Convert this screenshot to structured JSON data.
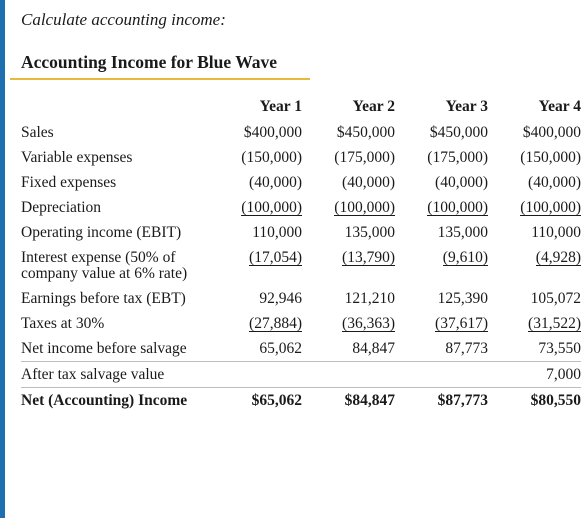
{
  "intro": "Calculate accounting income:",
  "heading": "Accounting Income for Blue Wave",
  "columns": [
    "Year 1",
    "Year 2",
    "Year 3",
    "Year 4"
  ],
  "rows": [
    {
      "label": "Sales",
      "values": [
        "$400,000",
        "$450,000",
        "$450,000",
        "$400,000"
      ],
      "underline": false
    },
    {
      "label": "Variable expenses",
      "values": [
        "(150,000)",
        "(175,000)",
        "(175,000)",
        "(150,000)"
      ],
      "underline": false
    },
    {
      "label": "Fixed expenses",
      "values": [
        "(40,000)",
        "(40,000)",
        "(40,000)",
        "(40,000)"
      ],
      "underline": false
    },
    {
      "label": "Depreciation",
      "values": [
        "(100,000)",
        "(100,000)",
        "(100,000)",
        "(100,000)"
      ],
      "underline": true
    },
    {
      "label": "Operating income (EBIT)",
      "values": [
        "110,000",
        "135,000",
        "135,000",
        "110,000"
      ],
      "underline": false
    },
    {
      "label": "Interest expense (50% of company value at 6% rate)",
      "values": [
        "(17,054)",
        "(13,790)",
        "(9,610)",
        "(4,928)"
      ],
      "underline": true
    },
    {
      "label": "Earnings before tax (EBT)",
      "values": [
        "92,946",
        "121,210",
        "125,390",
        "105,072"
      ],
      "underline": false
    },
    {
      "label": "Taxes at 30%",
      "values": [
        "(27,884)",
        "(36,363)",
        "(37,617)",
        "(31,522)"
      ],
      "underline": true
    },
    {
      "label": "Net income before salvage",
      "values": [
        "65,062",
        "84,847",
        "87,773",
        "73,550"
      ],
      "underline": false
    },
    {
      "label": "After tax salvage value",
      "values": [
        "",
        "",
        "",
        "7,000"
      ],
      "underline": false
    },
    {
      "label": "Net (Accounting) Income",
      "values": [
        "$65,062",
        "$84,847",
        "$87,773",
        "$80,550"
      ],
      "underline": false,
      "bold": true
    }
  ]
}
